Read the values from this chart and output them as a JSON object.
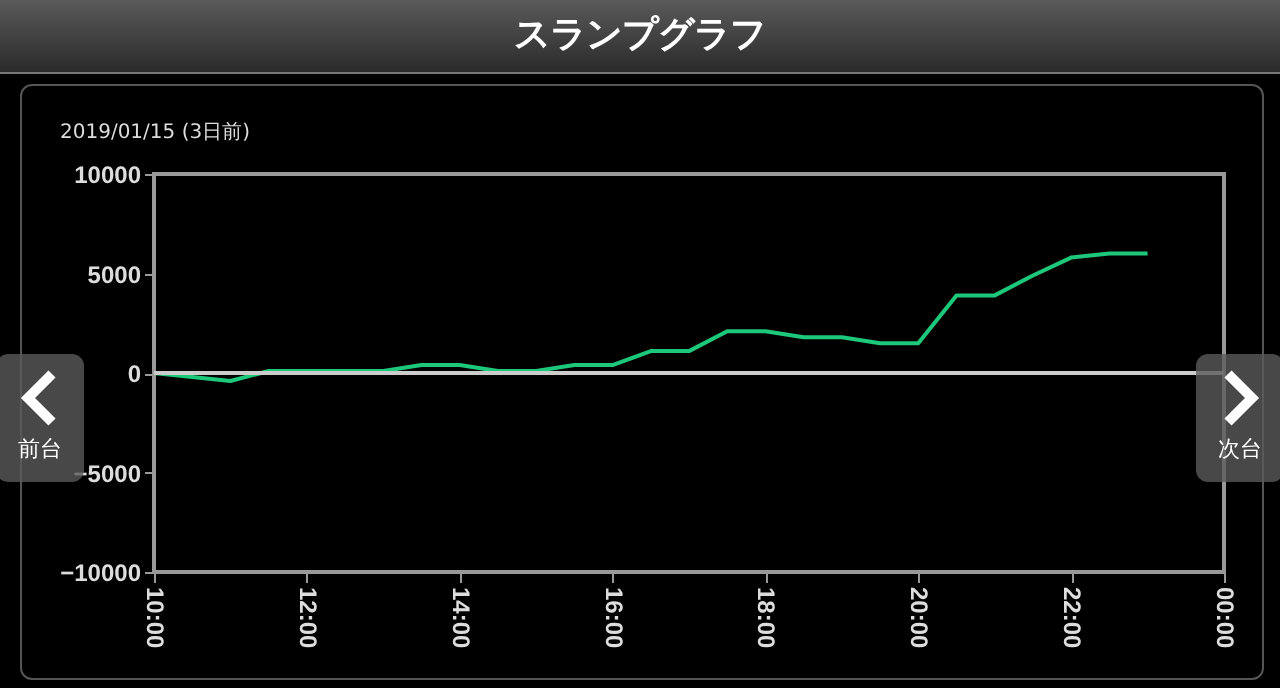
{
  "chart_data": {
    "type": "line",
    "title": "スランプグラフ",
    "subtitle": "2019/01/15 (3日前)",
    "x": [
      10,
      11,
      11.5,
      13,
      13.5,
      14,
      14.5,
      15,
      15.5,
      16,
      16.5,
      17,
      17.5,
      18,
      18.5,
      19,
      19.5,
      20,
      20.5,
      21,
      21.5,
      22,
      22.5,
      23
    ],
    "series": [
      {
        "color": "#1ec87a",
        "values": [
          0,
          -400,
          100,
          100,
          400,
          400,
          100,
          100,
          400,
          400,
          1100,
          1100,
          2100,
          2100,
          1800,
          1800,
          1500,
          1500,
          3900,
          3900,
          4900,
          5800,
          6000,
          6000
        ]
      }
    ],
    "xlim": [
      10,
      24
    ],
    "xticks": [
      {
        "value": 10,
        "label": "10:00"
      },
      {
        "value": 12,
        "label": "12:00"
      },
      {
        "value": 14,
        "label": "14:00"
      },
      {
        "value": 16,
        "label": "16:00"
      },
      {
        "value": 18,
        "label": "18:00"
      },
      {
        "value": 20,
        "label": "20:00"
      },
      {
        "value": 22,
        "label": "22:00"
      },
      {
        "value": 24,
        "label": "00:00"
      }
    ],
    "ylim": [
      -10000,
      10000
    ],
    "yticks": [
      -10000,
      -5000,
      0,
      5000,
      10000
    ],
    "ref_lines": [
      {
        "axis": "y",
        "value": 0,
        "color": "#cccccc"
      }
    ],
    "annotations": [
      "前台",
      "次台"
    ],
    "grid": false,
    "marker": "none",
    "line_style": "solid"
  }
}
